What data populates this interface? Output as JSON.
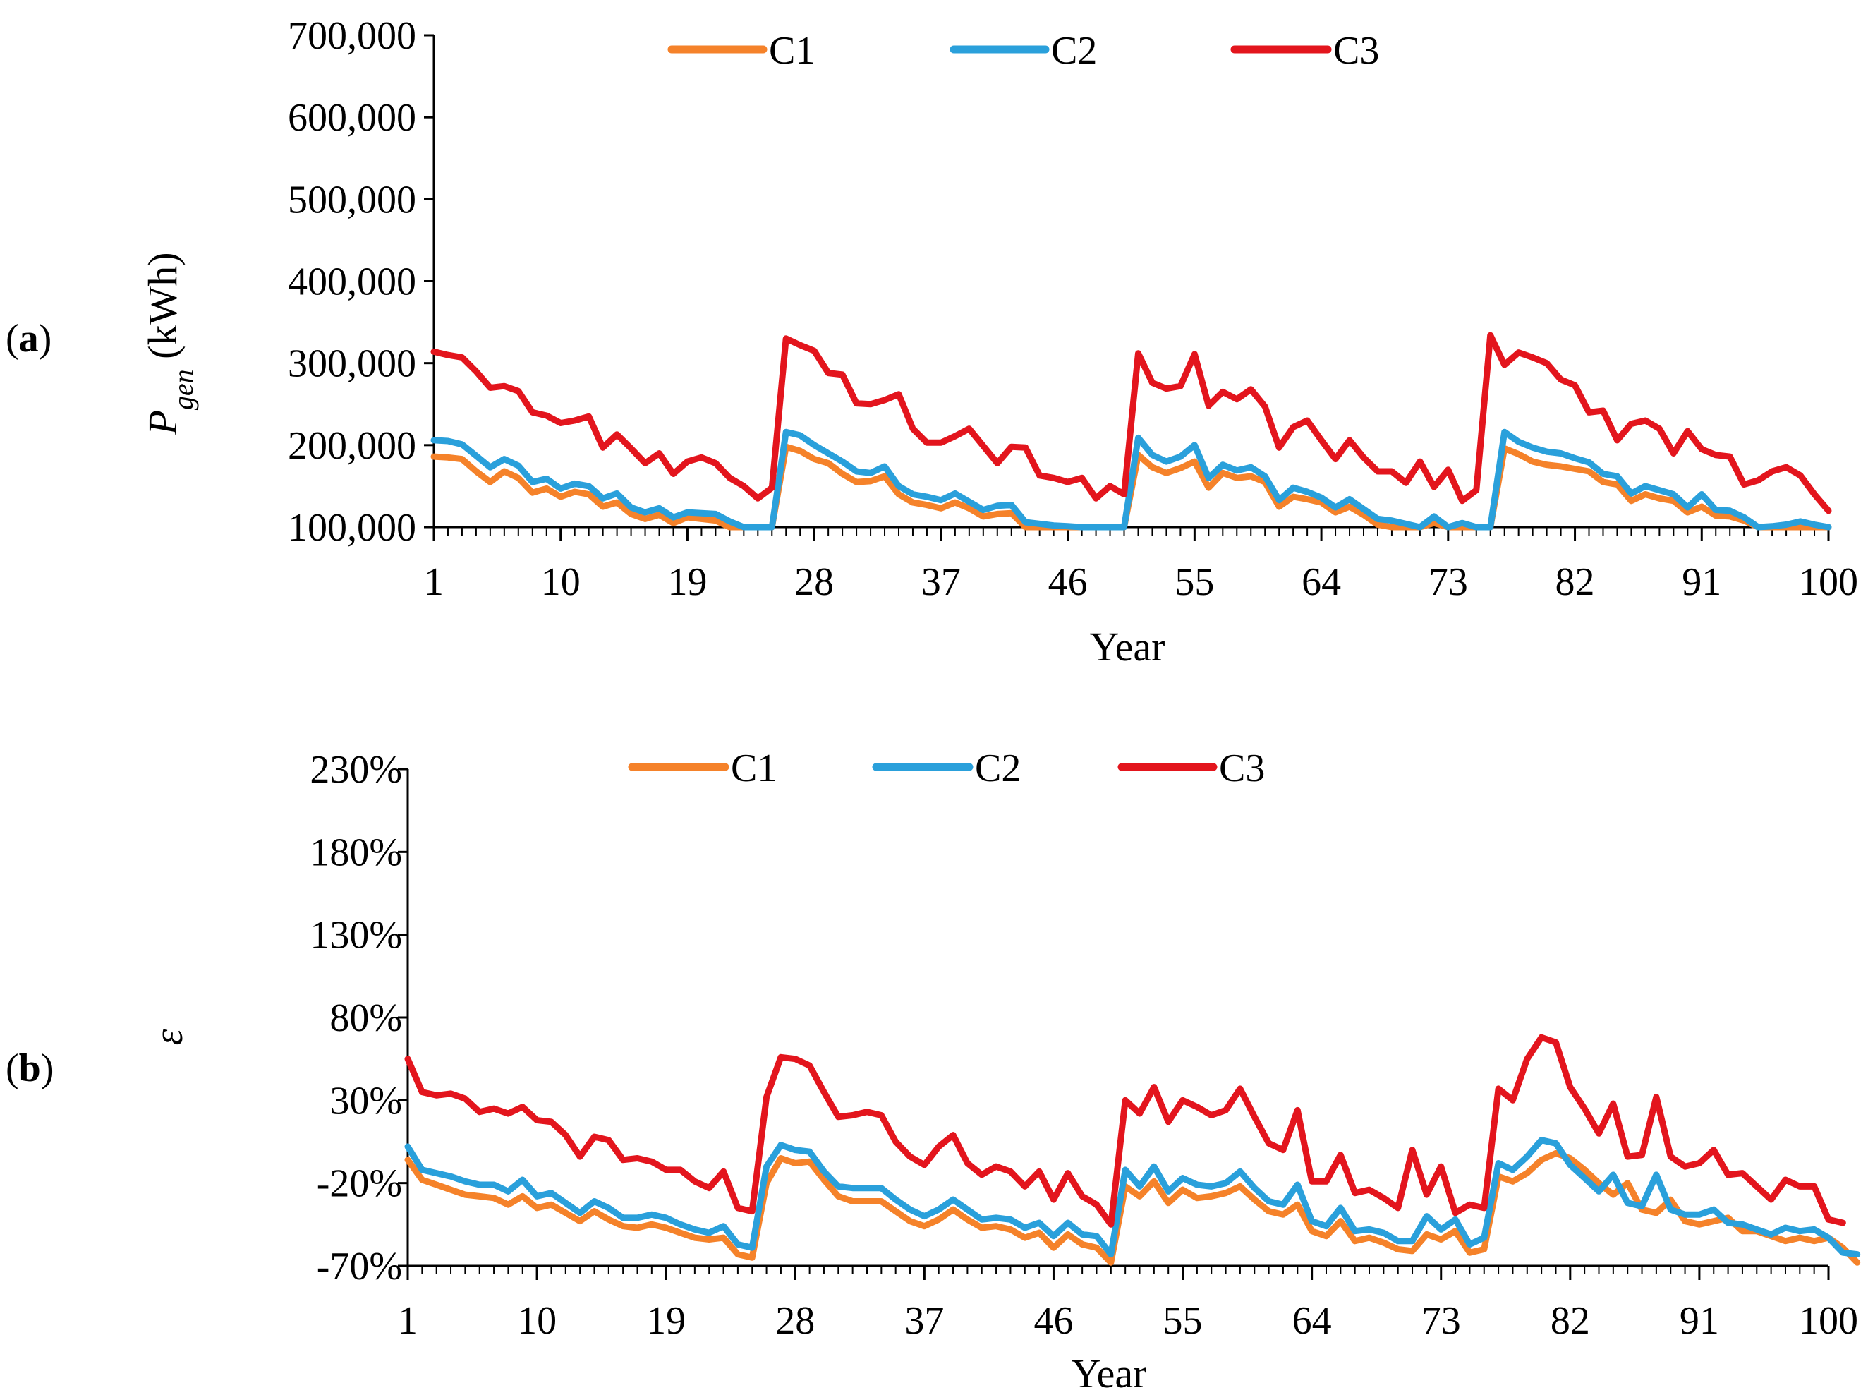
{
  "chart_data": [
    {
      "type": "line",
      "panel_label": "a",
      "ylabel": "P",
      "ylabel_sub": "gen",
      "ylabel_unit": " (kWh)",
      "xlabel": "Year",
      "ylim": [
        100000,
        700000
      ],
      "xlim": [
        1,
        100
      ],
      "yticks": [
        100000,
        200000,
        300000,
        400000,
        500000,
        600000,
        700000
      ],
      "ytick_labels": [
        "100,000",
        "200,000",
        "300,000",
        "400,000",
        "500,000",
        "600,000",
        "700,000"
      ],
      "xticks": [
        1,
        10,
        19,
        28,
        37,
        46,
        55,
        64,
        73,
        82,
        91,
        100
      ],
      "xtick_labels": [
        "1",
        "10",
        "19",
        "28",
        "37",
        "46",
        "55",
        "64",
        "73",
        "82",
        "91",
        "100"
      ],
      "legend_position": "top-center",
      "series": [
        {
          "name": "C1",
          "color": "#F5822A",
          "values": [
            186000,
            185000,
            183000,
            168000,
            155000,
            168000,
            160000,
            142000,
            147000,
            137000,
            143000,
            140000,
            125000,
            130000,
            116000,
            110000,
            115000,
            105000,
            112000,
            110000,
            108000,
            100000,
            100000,
            100000,
            100000,
            198000,
            193000,
            183000,
            178000,
            165000,
            155000,
            156000,
            162000,
            140000,
            130000,
            127000,
            123000,
            130000,
            123000,
            113000,
            116000,
            117000,
            100000,
            100000,
            100000,
            100000,
            100000,
            100000,
            100000,
            100000,
            188000,
            173000,
            166000,
            172000,
            180000,
            148000,
            166000,
            160000,
            162000,
            155000,
            125000,
            137000,
            134000,
            130000,
            118000,
            125000,
            115000,
            103000,
            100000,
            100000,
            100000,
            105000,
            100000,
            100000,
            100000,
            100000,
            196000,
            189000,
            180000,
            176000,
            174000,
            171000,
            168000,
            155000,
            152000,
            132000,
            140000,
            135000,
            132000,
            118000,
            125000,
            114000,
            113000,
            108000,
            100000,
            100000,
            100000,
            100000,
            100000,
            100000
          ]
        },
        {
          "name": "C2",
          "color": "#2AA0DB",
          "values": [
            206000,
            205000,
            201000,
            187000,
            173000,
            183000,
            175000,
            155000,
            159000,
            147000,
            153000,
            150000,
            135000,
            141000,
            124000,
            118000,
            123000,
            112000,
            118000,
            117000,
            116000,
            107000,
            100000,
            100000,
            100000,
            216000,
            212000,
            200000,
            190000,
            180000,
            168000,
            166000,
            174000,
            150000,
            140000,
            137000,
            133000,
            141000,
            131000,
            121000,
            126000,
            127000,
            106000,
            104000,
            102000,
            101000,
            100000,
            100000,
            100000,
            100000,
            209000,
            188000,
            180000,
            186000,
            200000,
            160000,
            176000,
            169000,
            173000,
            162000,
            133000,
            148000,
            143000,
            136000,
            124000,
            134000,
            122000,
            110000,
            108000,
            104000,
            100000,
            113000,
            100000,
            105000,
            100000,
            100000,
            216000,
            204000,
            197000,
            192000,
            190000,
            184000,
            179000,
            165000,
            162000,
            141000,
            150000,
            145000,
            140000,
            124000,
            140000,
            121000,
            120000,
            112000,
            100000,
            101000,
            103000,
            107000,
            103000,
            100000
          ]
        },
        {
          "name": "C3",
          "color": "#E3151D",
          "values": [
            314000,
            310000,
            307000,
            290000,
            270000,
            272000,
            266000,
            240000,
            236000,
            227000,
            230000,
            235000,
            197000,
            213000,
            196000,
            178000,
            190000,
            165000,
            180000,
            185000,
            178000,
            160000,
            150000,
            135000,
            148000,
            330000,
            322000,
            315000,
            288000,
            286000,
            251000,
            250000,
            255000,
            262000,
            220000,
            203000,
            203000,
            211000,
            220000,
            199000,
            178000,
            198000,
            197000,
            163000,
            160000,
            155000,
            160000,
            135000,
            150000,
            140000,
            312000,
            276000,
            269000,
            272000,
            311000,
            248000,
            265000,
            256000,
            268000,
            247000,
            197000,
            222000,
            230000,
            206000,
            183000,
            206000,
            185000,
            168000,
            168000,
            154000,
            180000,
            149000,
            170000,
            132000,
            145000,
            334000,
            298000,
            313000,
            307000,
            300000,
            280000,
            273000,
            240000,
            242000,
            206000,
            226000,
            230000,
            220000,
            190000,
            217000,
            195000,
            188000,
            186000,
            152000,
            157000,
            168000,
            173000,
            163000,
            140000,
            120000
          ]
        }
      ]
    },
    {
      "type": "line",
      "panel_label": "b",
      "ylabel": "ε",
      "xlabel": "Year",
      "ylim": [
        -70,
        230
      ],
      "xlim": [
        1,
        100
      ],
      "yticks": [
        -70,
        -20,
        30,
        80,
        130,
        180,
        230
      ],
      "ytick_labels": [
        "-70%",
        "-20%",
        "30%",
        "80%",
        "130%",
        "180%",
        "230%"
      ],
      "xticks": [
        1,
        10,
        19,
        28,
        37,
        46,
        55,
        64,
        73,
        82,
        91,
        100
      ],
      "xtick_labels": [
        "1",
        "10",
        "19",
        "28",
        "37",
        "46",
        "55",
        "64",
        "73",
        "82",
        "91",
        "100"
      ],
      "legend_position": "top-center",
      "series": [
        {
          "name": "C1",
          "color": "#F5822A",
          "values": [
            -6,
            -18,
            -21,
            -24,
            -27,
            -28,
            -29,
            -33,
            -28,
            -35,
            -33,
            -38,
            -43,
            -37,
            -42,
            -46,
            -47,
            -45,
            -47,
            -50,
            -53,
            -54,
            -53,
            -63,
            -65,
            -20,
            -5,
            -8,
            -7,
            -18,
            -28,
            -31,
            -31,
            -31,
            -37,
            -43,
            -46,
            -42,
            -36,
            -42,
            -47,
            -46,
            -48,
            -53,
            -50,
            -59,
            -51,
            -57,
            -59,
            -68,
            -22,
            -28,
            -19,
            -32,
            -24,
            -29,
            -28,
            -26,
            -22,
            -30,
            -37,
            -39,
            -33,
            -49,
            -52,
            -43,
            -55,
            -53,
            -56,
            -60,
            -61,
            -51,
            -54,
            -49,
            -62,
            -60,
            -16,
            -19,
            -14,
            -6,
            -2,
            -5,
            -12,
            -20,
            -27,
            -20,
            -36,
            -38,
            -30,
            -43,
            -45,
            -43,
            -41,
            -49,
            -49,
            -52,
            -55,
            -53,
            -55,
            -53,
            -59,
            -68
          ]
        },
        {
          "name": "C2",
          "color": "#2AA0DB",
          "values": [
            2,
            -12,
            -14,
            -16,
            -19,
            -21,
            -21,
            -25,
            -18,
            -28,
            -26,
            -32,
            -38,
            -31,
            -35,
            -41,
            -41,
            -39,
            -41,
            -45,
            -48,
            -50,
            -46,
            -57,
            -59,
            -10,
            3,
            0,
            -1,
            -13,
            -22,
            -23,
            -23,
            -23,
            -30,
            -36,
            -40,
            -36,
            -30,
            -36,
            -42,
            -41,
            -42,
            -47,
            -44,
            -52,
            -44,
            -51,
            -52,
            -63,
            -12,
            -22,
            -10,
            -25,
            -17,
            -21,
            -22,
            -20,
            -13,
            -23,
            -31,
            -33,
            -21,
            -43,
            -46,
            -35,
            -49,
            -48,
            -50,
            -55,
            -55,
            -40,
            -48,
            -42,
            -57,
            -53,
            -8,
            -12,
            -4,
            6,
            4,
            -9,
            -17,
            -25,
            -15,
            -32,
            -34,
            -15,
            -36,
            -39,
            -39,
            -36,
            -44,
            -45,
            -48,
            -51,
            -47,
            -49,
            -48,
            -53,
            -62,
            -63
          ]
        },
        {
          "name": "C3",
          "color": "#E3151D",
          "values": [
            55,
            35,
            33,
            34,
            31,
            23,
            25,
            22,
            26,
            18,
            17,
            9,
            -4,
            8,
            6,
            -6,
            -5,
            -7,
            -12,
            -12,
            -19,
            -23,
            -13,
            -35,
            -37,
            32,
            56,
            55,
            51,
            35,
            20,
            21,
            23,
            21,
            5,
            -4,
            -9,
            2,
            9,
            -8,
            -15,
            -10,
            -13,
            -22,
            -13,
            -30,
            -14,
            -28,
            -33,
            -45,
            30,
            22,
            38,
            17,
            30,
            26,
            21,
            24,
            37,
            20,
            4,
            0,
            24,
            -19,
            -19,
            -3,
            -26,
            -24,
            -29,
            -35,
            0,
            -27,
            -10,
            -38,
            -33,
            -35,
            37,
            30,
            55,
            68,
            65,
            38,
            25,
            10,
            28,
            -4,
            -3,
            32,
            -4,
            -10,
            -8,
            0,
            -15,
            -14,
            -22,
            -30,
            -18,
            -22,
            -22,
            -42,
            -44
          ]
        }
      ]
    }
  ]
}
